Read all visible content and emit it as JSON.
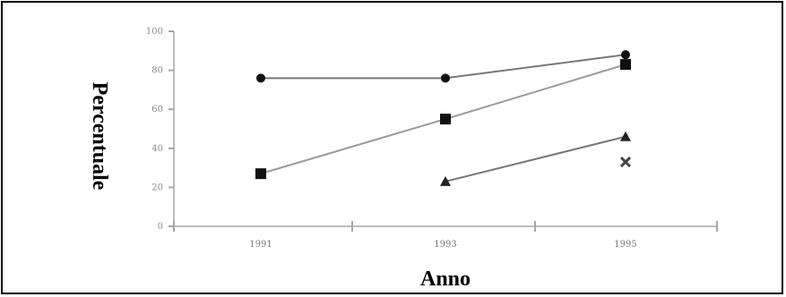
{
  "chart_data": {
    "type": "line",
    "title": "",
    "xlabel": "Anno",
    "ylabel": "Percentuale",
    "categories": [
      "1991",
      "1993",
      "1995"
    ],
    "yticks": [
      "0",
      "20",
      "40",
      "60",
      "80",
      "100"
    ],
    "ylim": [
      0,
      100
    ],
    "grid": false,
    "series": [
      {
        "values": [
          76,
          76,
          88
        ],
        "line_color": "#777777",
        "marker_color": "#111111",
        "marker": "circle"
      },
      {
        "values": [
          27,
          55,
          83
        ],
        "line_color": "#9a9a9a",
        "marker_color": "#111111",
        "marker": "square"
      },
      {
        "values": [
          null,
          23,
          46
        ],
        "line_color": "#777777",
        "marker_color": "#222222",
        "marker": "triangle"
      },
      {
        "values": [
          null,
          null,
          33
        ],
        "line_color": "#777777",
        "marker_color": "#444444",
        "marker": "x"
      }
    ]
  }
}
